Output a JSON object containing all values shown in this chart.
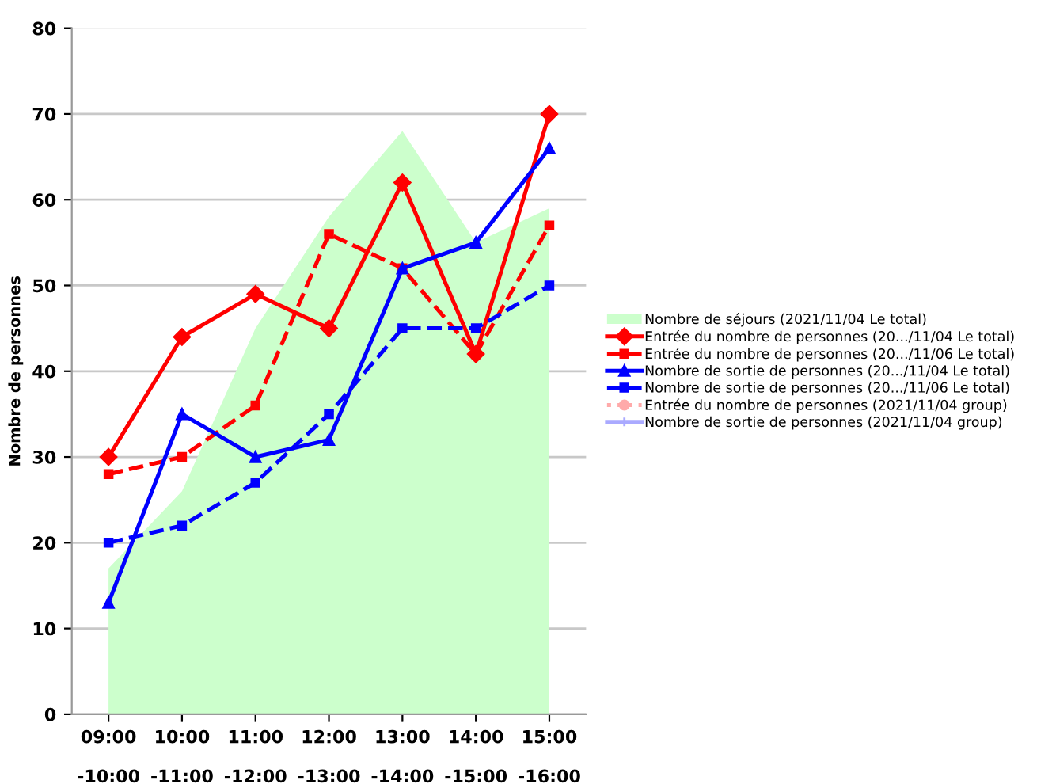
{
  "chart_data": {
    "type": "line",
    "ylabel": "Nombre de personnes",
    "categories": [
      "09:00\n\n-10:00",
      "10:00\n\n-11:00",
      "11:00\n\n-12:00",
      "12:00\n\n-13:00",
      "13:00\n\n-14:00",
      "14:00\n\n-15:00",
      "15:00\n\n-16:00"
    ],
    "series": [
      {
        "name": "Nombre de séjours (2021/11/04 Le total)",
        "type": "area",
        "color": "#ccffcc",
        "values": [
          17,
          26,
          45,
          58,
          68,
          55,
          59
        ]
      },
      {
        "name": "Entrée du nombre de personnes (20.../11/04 Le total)",
        "color": "#ff0000",
        "marker": "diamond",
        "line_style": "solid",
        "values": [
          30,
          44,
          49,
          45,
          62,
          42,
          70
        ]
      },
      {
        "name": "Entrée du nombre de personnes (20.../11/06 Le total)",
        "color": "#ff0000",
        "marker": "square",
        "line_style": "dashed",
        "values": [
          28,
          30,
          36,
          56,
          52,
          42,
          57
        ]
      },
      {
        "name": "Nombre de sortie de personnes (20.../11/04 Le total)",
        "color": "#0000ff",
        "marker": "triangle",
        "line_style": "solid",
        "values": [
          13,
          35,
          30,
          32,
          52,
          55,
          66
        ]
      },
      {
        "name": "Nombre de sortie de personnes (20.../11/06 Le total)",
        "color": "#0000ff",
        "marker": "square",
        "line_style": "dashed",
        "values": [
          20,
          22,
          27,
          35,
          45,
          45,
          50
        ]
      },
      {
        "name": "Entrée du nombre de personnes (2021/11/04 group)",
        "color": "#ffaaaa",
        "marker": "circle",
        "line_style": "dotted",
        "values": [
          null,
          null,
          null,
          null,
          null,
          null,
          null
        ]
      },
      {
        "name": "Nombre de sortie de personnes (2021/11/04 group)",
        "color": "#aaaaff",
        "marker": "cross",
        "line_style": "solid",
        "values": [
          null,
          null,
          null,
          null,
          null,
          null,
          null
        ]
      }
    ],
    "ylim": [
      0,
      80
    ],
    "yticks": [
      0,
      10,
      20,
      30,
      40,
      50,
      60,
      70,
      80
    ],
    "grid": "y",
    "legend": "right"
  }
}
